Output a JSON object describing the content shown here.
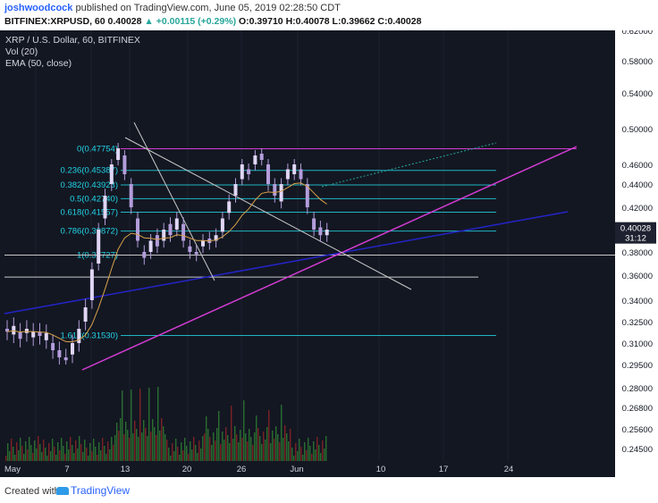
{
  "header": {
    "author": "joshwoodcock",
    "published_text": "published on TradingView.com, June 05, 2019 02:28:50 CDT",
    "symbol": "BITFINEX:XRPUSD, 60",
    "last": "0.40028",
    "change": "+0.00115 (+0.29%)",
    "o_label": "O:",
    "o": "0.39710",
    "h_label": "H:",
    "h": "0.40078",
    "l_label": "L:",
    "l": "0.39662",
    "c_label": "C:",
    "c": "0.40028"
  },
  "legend": {
    "title": "XRP / U.S. Dollar, 60, BITFINEX",
    "vol": "Vol (20)",
    "ema": "EMA (50, close)"
  },
  "footer": {
    "created_with": "Created with",
    "brand": "TradingView"
  },
  "colors": {
    "background": "#131722",
    "candles": "#b39ddb",
    "fib": "#1fb5c2",
    "fib_text": "#22d3e6",
    "magenta": "#d43cd4",
    "blue_trend": "#2424c8",
    "ema": "#d8a24a",
    "vol_up": "#2e7d32",
    "vol_down": "#8e2424"
  },
  "chart_data": {
    "type": "candlestick",
    "price_axis_labels": [
      "0.62000",
      "0.58000",
      "0.54000",
      "0.50000",
      "0.46000",
      "0.44000",
      "0.42000",
      "0.38000",
      "0.36000",
      "0.34000",
      "0.32500",
      "0.31000",
      "0.29500",
      "0.28000",
      "0.26800",
      "0.25600",
      "0.24500"
    ],
    "x_tick_labels": [
      "May",
      "7",
      "13",
      "20",
      "26",
      "Jun",
      "10",
      "17",
      "24"
    ],
    "current_price_label": "0.40028",
    "countdown_label": "31:12",
    "fib_levels": [
      {
        "label": "0(0.47754)",
        "price": 0.47754
      },
      {
        "label": "0.236(0.45387)",
        "price": 0.45387
      },
      {
        "label": "0.382(0.43923)",
        "price": 0.43923
      },
      {
        "label": "0.5(0.42740)",
        "price": 0.4274
      },
      {
        "label": "0.618(0.41557)",
        "price": 0.41557
      },
      {
        "label": "0.786(0.39872)",
        "price": 0.39872
      },
      {
        "label": "1(0.37727)",
        "price": 0.37727
      },
      {
        "label": "1.618(0.31530)",
        "price": 0.3153
      }
    ],
    "price_path": [
      [
        0.32,
        0.318
      ],
      [
        0.316,
        0.322
      ],
      [
        0.318,
        0.313
      ],
      [
        0.317,
        0.32
      ],
      [
        0.314,
        0.318
      ],
      [
        0.318,
        0.315
      ],
      [
        0.312,
        0.317
      ],
      [
        0.31,
        0.305
      ],
      [
        0.305,
        0.3
      ],
      [
        0.3,
        0.298
      ],
      [
        0.302,
        0.31
      ],
      [
        0.31,
        0.32
      ],
      [
        0.325,
        0.335
      ],
      [
        0.34,
        0.365
      ],
      [
        0.37,
        0.4
      ],
      [
        0.41,
        0.43
      ],
      [
        0.44,
        0.46
      ],
      [
        0.465,
        0.478
      ],
      [
        0.47,
        0.45
      ],
      [
        0.44,
        0.42
      ],
      [
        0.41,
        0.39
      ],
      [
        0.38,
        0.375
      ],
      [
        0.38,
        0.39
      ],
      [
        0.395,
        0.385
      ],
      [
        0.39,
        0.4
      ],
      [
        0.405,
        0.395
      ],
      [
        0.4,
        0.41
      ],
      [
        0.405,
        0.39
      ],
      [
        0.385,
        0.38
      ],
      [
        0.38,
        0.378
      ],
      [
        0.385,
        0.39
      ],
      [
        0.392,
        0.388
      ],
      [
        0.39,
        0.395
      ],
      [
        0.398,
        0.41
      ],
      [
        0.415,
        0.425
      ],
      [
        0.43,
        0.44
      ],
      [
        0.445,
        0.46
      ],
      [
        0.455,
        0.45
      ],
      [
        0.46,
        0.47
      ],
      [
        0.472,
        0.465
      ],
      [
        0.46,
        0.44
      ],
      [
        0.44,
        0.43
      ],
      [
        0.425,
        0.44
      ],
      [
        0.445,
        0.455
      ],
      [
        0.45,
        0.46
      ],
      [
        0.455,
        0.445
      ],
      [
        0.44,
        0.42
      ],
      [
        0.41,
        0.4
      ],
      [
        0.402,
        0.395
      ],
      [
        0.395,
        0.4
      ]
    ]
  }
}
